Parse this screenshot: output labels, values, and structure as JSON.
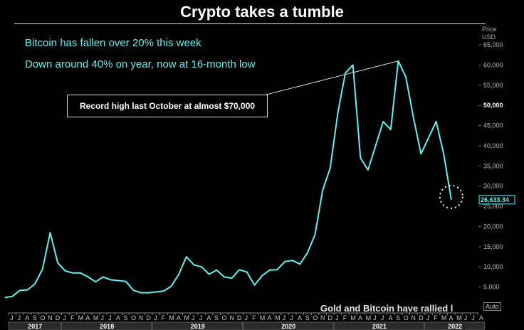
{
  "title": "Crypto takes a tumble",
  "subtitle_1": "Bitcoin has fallen over 20% this week",
  "subtitle_2": "Down around 40% on year, now at 16-month low",
  "annotation": "Record high last October at almost $70,000",
  "truncated_text": "Gold and Bitcoin have rallied l",
  "axis_header": "Price\nUSD",
  "auto_label": "Auto",
  "last_value_label": "26,633.34",
  "colors": {
    "line": "#5ff2ef",
    "background": "#000000",
    "marker": "#ffffff"
  },
  "chart_data": {
    "type": "line",
    "title": "Crypto takes a tumble",
    "ylabel": "Price USD",
    "ylim": [
      0,
      68000
    ],
    "y_ticks": [
      5000,
      10000,
      15000,
      20000,
      25000,
      30000,
      35000,
      40000,
      45000,
      50000,
      55000,
      60000,
      65000
    ],
    "y_tick_labels": [
      "5,000",
      "10,000",
      "15,000",
      "20,000",
      "25,000",
      "30,000",
      "35,000",
      "40,000",
      "45,000",
      "50,000",
      "55,000",
      "60,000",
      "65,000"
    ],
    "month_letters": [
      "J",
      "J",
      "A",
      "S",
      "O",
      "N",
      "D",
      "J",
      "F",
      "M",
      "A",
      "M",
      "J",
      "J",
      "A",
      "S",
      "O",
      "N",
      "D",
      "J",
      "F",
      "M",
      "A",
      "M",
      "J",
      "J",
      "A",
      "S",
      "O",
      "N",
      "D",
      "J",
      "F",
      "M",
      "A",
      "M",
      "J",
      "J",
      "A",
      "S",
      "O",
      "N",
      "D",
      "J",
      "F",
      "M",
      "A",
      "M",
      "J",
      "J",
      "A",
      "S",
      "O",
      "N",
      "D",
      "J",
      "F",
      "M",
      "A",
      "M",
      "J",
      "J",
      "A"
    ],
    "years": [
      {
        "label": "2017",
        "start": 0,
        "end": 7
      },
      {
        "label": "2018",
        "start": 7,
        "end": 19
      },
      {
        "label": "2019",
        "start": 19,
        "end": 31
      },
      {
        "label": "2020",
        "start": 31,
        "end": 43
      },
      {
        "label": "2021",
        "start": 43,
        "end": 55
      },
      {
        "label": "2022",
        "start": 55,
        "end": 63
      }
    ],
    "series": [
      {
        "x": [
          "2017-06",
          "2017-07",
          "2017-08",
          "2017-09",
          "2017-10",
          "2017-11",
          "2017-12",
          "2018-01",
          "2018-02",
          "2018-03",
          "2018-04",
          "2018-05",
          "2018-06",
          "2018-07",
          "2018-08",
          "2018-09",
          "2018-10",
          "2018-11",
          "2018-12",
          "2019-01",
          "2019-02",
          "2019-03",
          "2019-04",
          "2019-05",
          "2019-06",
          "2019-07",
          "2019-08",
          "2019-09",
          "2019-10",
          "2019-11",
          "2019-12",
          "2020-01",
          "2020-02",
          "2020-03",
          "2020-04",
          "2020-05",
          "2020-06",
          "2020-07",
          "2020-08",
          "2020-09",
          "2020-10",
          "2020-11",
          "2020-12",
          "2021-01",
          "2021-02",
          "2021-03",
          "2021-04",
          "2021-05",
          "2021-06",
          "2021-07",
          "2021-08",
          "2021-09",
          "2021-10",
          "2021-11",
          "2021-12",
          "2022-01",
          "2022-02",
          "2022-03",
          "2022-04",
          "2022-05"
        ],
        "y": [
          2400,
          2700,
          4200,
          4300,
          5800,
          9500,
          18500,
          11000,
          9000,
          8500,
          8500,
          7500,
          6300,
          7500,
          6800,
          6600,
          6400,
          4200,
          3600,
          3600,
          3800,
          4000,
          5200,
          8200,
          12500,
          10500,
          10000,
          8200,
          9200,
          7500,
          7200,
          9300,
          8700,
          5500,
          7800,
          9200,
          9300,
          11300,
          11600,
          10700,
          13500,
          18000,
          28900,
          34500,
          48000,
          58000,
          60000,
          37000,
          34000,
          40000,
          46000,
          44000,
          61000,
          57000,
          47000,
          38000,
          42000,
          46000,
          38000,
          26633
        ]
      }
    ],
    "annotations": [
      "Record high last October at almost $70,000"
    ]
  }
}
